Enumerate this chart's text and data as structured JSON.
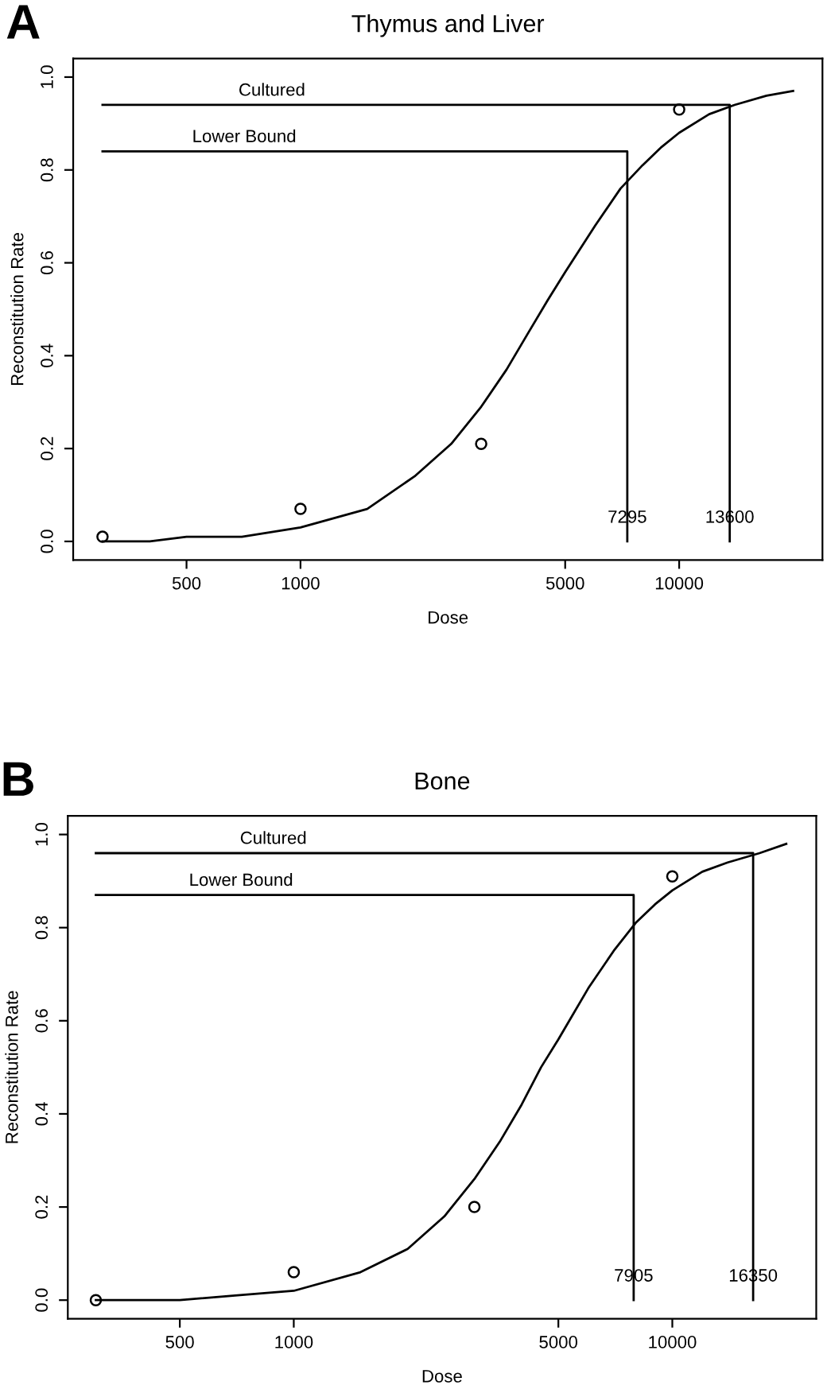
{
  "chart_data": [
    {
      "type": "line",
      "title": "Thymus and Liver",
      "xlabel": "Dose",
      "ylabel": "Reconstitution Rate",
      "log": "x",
      "grid": false,
      "legend": false,
      "xlim": [
        251,
        23900
      ],
      "xticks": [
        500,
        1000,
        5000,
        10000
      ],
      "ylim": [
        -0.04,
        1.04
      ],
      "yticks": [
        {
          "value": 0,
          "label": "0.0"
        },
        {
          "value": 0.2,
          "label": "0.2"
        },
        {
          "value": 0.4,
          "label": "0.4"
        },
        {
          "value": 0.6,
          "label": "0.6"
        },
        {
          "value": 0.8,
          "label": "0.8"
        },
        {
          "value": 1,
          "label": "1.0"
        }
      ],
      "annotations": [
        "A",
        {
          "text": "7295",
          "x": 7295,
          "y": 0.05
        },
        {
          "text": "13600",
          "x": 13600,
          "y": 0.05
        }
      ],
      "series": [
        {
          "color": "#000000",
          "x": [
            300,
            400,
            500,
            700,
            1000,
            1500,
            2000,
            2500,
            3000,
            3500,
            4000,
            4500,
            5000,
            6000,
            7000,
            8000,
            9000,
            10000,
            12000,
            14000,
            17000,
            20000
          ],
          "values": [
            0.0,
            0.0,
            0.01,
            0.01,
            0.03,
            0.07,
            0.14,
            0.21,
            0.29,
            0.37,
            0.45,
            0.52,
            0.58,
            0.68,
            0.76,
            0.81,
            0.85,
            0.88,
            0.92,
            0.94,
            0.96,
            0.97
          ]
        },
        {
          "type": "scatter",
          "color": "#000000",
          "marker": "circle",
          "x": [
            300,
            1000,
            3000,
            10000
          ],
          "values": [
            0.01,
            0.07,
            0.21,
            0.93
          ]
        },
        {
          "name": "Cultured",
          "color": "#000000",
          "x": [
            300,
            13600,
            13600
          ],
          "values": [
            0.94,
            0.94,
            0
          ]
        },
        {
          "name": "Lower Bound",
          "color": "#000000",
          "x": [
            300,
            7295,
            7295
          ],
          "values": [
            0.84,
            0.84,
            0
          ]
        }
      ]
    },
    {
      "type": "line",
      "title": "Bone",
      "xlabel": "Dose",
      "ylabel": "Reconstitution Rate",
      "log": "x",
      "grid": false,
      "legend": false,
      "xlim": [
        253,
        24000
      ],
      "xticks": [
        500,
        1000,
        5000,
        10000
      ],
      "ylim": [
        -0.04,
        1.04
      ],
      "yticks": [
        {
          "value": 0,
          "label": "0.0"
        },
        {
          "value": 0.2,
          "label": "0.2"
        },
        {
          "value": 0.4,
          "label": "0.4"
        },
        {
          "value": 0.6,
          "label": "0.6"
        },
        {
          "value": 0.8,
          "label": "0.8"
        },
        {
          "value": 1,
          "label": "1.0"
        }
      ],
      "annotations": [
        "B",
        {
          "text": "7905",
          "x": 7905,
          "y": 0.05
        },
        {
          "text": "16350",
          "x": 16350,
          "y": 0.05
        }
      ],
      "series": [
        {
          "color": "#000000",
          "x": [
            300,
            400,
            500,
            700,
            1000,
            1500,
            2000,
            2500,
            3000,
            3500,
            4000,
            4500,
            5000,
            6000,
            7000,
            8000,
            9000,
            10000,
            12000,
            14000,
            17000,
            20000
          ],
          "values": [
            0.0,
            0.0,
            0.0,
            0.01,
            0.02,
            0.06,
            0.11,
            0.18,
            0.26,
            0.34,
            0.42,
            0.5,
            0.56,
            0.67,
            0.75,
            0.81,
            0.85,
            0.88,
            0.92,
            0.94,
            0.96,
            0.98
          ]
        },
        {
          "type": "scatter",
          "color": "#000000",
          "marker": "circle",
          "x": [
            300,
            1000,
            3000,
            10000
          ],
          "values": [
            0.0,
            0.06,
            0.2,
            0.91
          ]
        },
        {
          "name": "Cultured",
          "color": "#000000",
          "x": [
            300,
            16350,
            16350
          ],
          "values": [
            0.96,
            0.96,
            0
          ]
        },
        {
          "name": "Lower Bound",
          "color": "#000000",
          "x": [
            300,
            7905,
            7905
          ],
          "values": [
            0.87,
            0.87,
            0
          ]
        }
      ]
    }
  ]
}
